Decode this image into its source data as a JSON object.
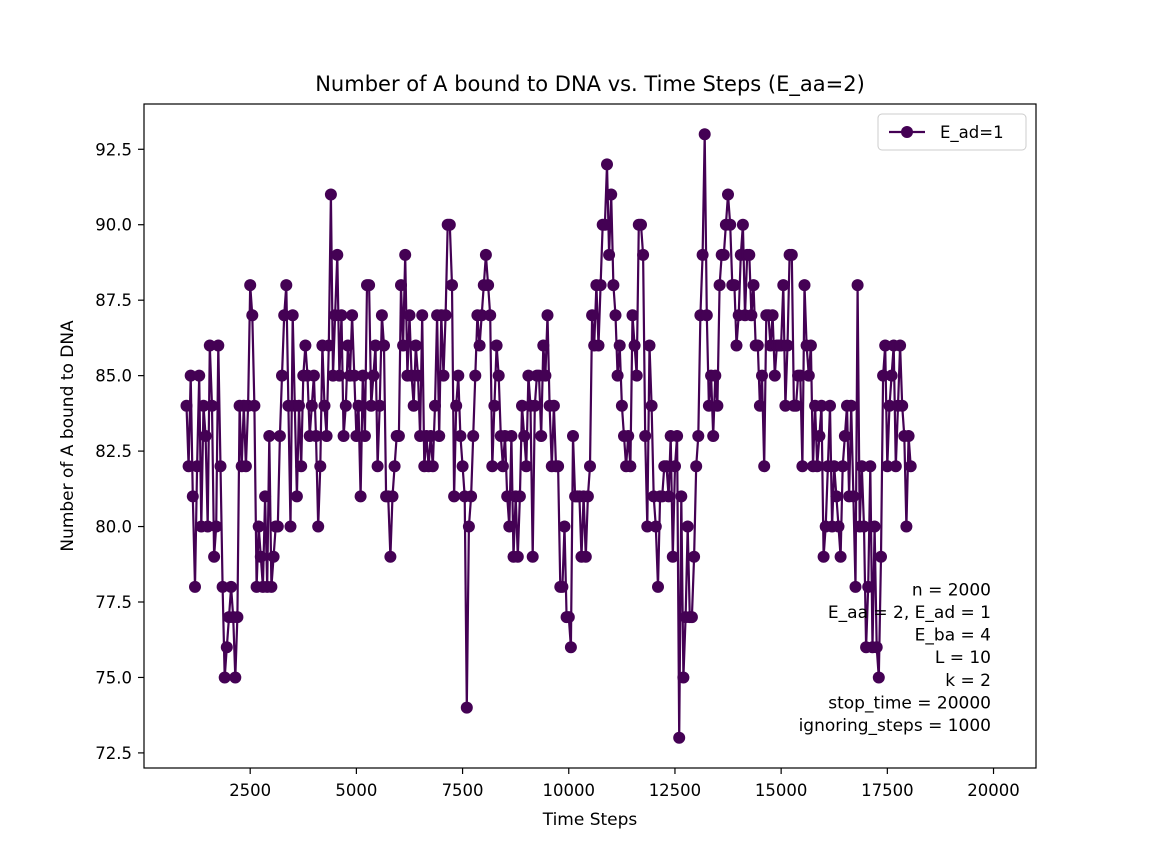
{
  "chart_data": {
    "type": "line",
    "title": "Number of A bound to DNA vs. Time Steps (E_aa=2)",
    "xlabel": "Time Steps",
    "ylabel": "Number of A bound to DNA",
    "xlim": [
      0,
      21000
    ],
    "ylim": [
      72.0,
      94.0
    ],
    "xticks": [
      2500,
      5000,
      7500,
      10000,
      12500,
      15000,
      17500,
      20000
    ],
    "yticks": [
      72.5,
      75.0,
      77.5,
      80.0,
      82.5,
      85.0,
      87.5,
      90.0,
      92.5
    ],
    "xtick_labels": [
      "2500",
      "5000",
      "7500",
      "10000",
      "12500",
      "15000",
      "17500",
      "20000"
    ],
    "ytick_labels": [
      "72.5",
      "75.0",
      "77.5",
      "80.0",
      "82.5",
      "85.0",
      "87.5",
      "90.0",
      "92.5"
    ],
    "grid": false,
    "legend_position": "top-right",
    "series": [
      {
        "name": "E_ad=1",
        "color": "#440154",
        "marker": "circle",
        "x_start": 1000,
        "x_step": 50,
        "values": [
          84,
          82,
          85,
          81,
          78,
          82,
          85,
          80,
          84,
          83,
          80,
          86,
          84,
          79,
          80,
          86,
          82,
          78,
          75,
          76,
          77,
          78,
          77,
          75,
          77,
          84,
          82,
          84,
          82,
          84,
          88,
          87,
          84,
          78,
          80,
          79,
          78,
          81,
          78,
          83,
          78,
          79,
          80,
          80,
          83,
          85,
          87,
          88,
          84,
          80,
          87,
          84,
          81,
          84,
          82,
          85,
          86,
          85,
          83,
          84,
          85,
          83,
          80,
          82,
          86,
          84,
          83,
          86,
          91,
          85,
          87,
          89,
          85,
          87,
          83,
          84,
          86,
          85,
          87,
          85,
          83,
          84,
          81,
          85,
          83,
          88,
          88,
          84,
          85,
          86,
          82,
          84,
          87,
          86,
          81,
          81,
          79,
          81,
          82,
          83,
          83,
          88,
          86,
          89,
          85,
          87,
          85,
          84,
          86,
          85,
          83,
          87,
          82,
          83,
          82,
          83,
          82,
          84,
          87,
          83,
          87,
          85,
          87,
          90,
          90,
          88,
          81,
          84,
          85,
          83,
          82,
          81,
          74,
          80,
          81,
          83,
          85,
          87,
          86,
          87,
          88,
          89,
          88,
          87,
          82,
          84,
          86,
          85,
          83,
          82,
          83,
          81,
          80,
          83,
          79,
          81,
          79,
          81,
          84,
          83,
          82,
          85,
          84,
          79,
          84,
          85,
          85,
          83,
          86,
          85,
          87,
          84,
          82,
          84,
          82,
          82,
          78,
          78,
          80,
          77,
          77,
          76,
          83,
          81,
          81,
          81,
          79,
          81,
          79,
          81,
          82,
          87,
          86,
          88,
          86,
          88,
          90,
          90,
          92,
          89,
          91,
          88,
          87,
          85,
          86,
          84,
          83,
          82,
          83,
          82,
          87,
          86,
          85,
          90,
          90,
          89,
          83,
          80,
          86,
          84,
          81,
          80,
          78,
          81,
          81,
          82,
          82,
          81,
          83,
          79,
          82,
          83,
          73,
          81,
          75,
          77,
          80,
          77,
          77,
          79,
          82,
          83,
          87,
          89,
          93,
          87,
          84,
          85,
          83,
          85,
          84,
          88,
          89,
          89,
          90,
          91,
          90,
          88,
          88,
          86,
          87,
          89,
          90,
          87,
          89,
          89,
          87,
          88,
          86,
          86,
          84,
          85,
          82,
          87,
          87,
          86,
          87,
          85,
          86,
          86,
          86,
          88,
          84,
          86,
          89,
          89,
          84,
          84,
          85,
          85,
          82,
          88,
          86,
          85,
          86,
          82,
          84,
          82,
          83,
          84,
          79,
          80,
          82,
          84,
          80,
          82,
          81,
          80,
          79,
          82,
          83,
          84,
          81,
          84,
          81,
          78,
          88,
          80,
          82,
          80,
          76,
          78,
          82,
          76,
          80,
          76,
          75,
          79,
          85,
          86,
          82,
          84,
          85,
          86,
          82,
          84,
          86,
          84,
          83,
          80,
          83,
          82
        ]
      }
    ],
    "annotations": [
      "n = 2000",
      "E_aa = 2, E_ad = 1",
      "E_ba = 4",
      "L = 10",
      "k = 2",
      "stop_time = 20000",
      "ignoring_steps = 1000"
    ]
  }
}
